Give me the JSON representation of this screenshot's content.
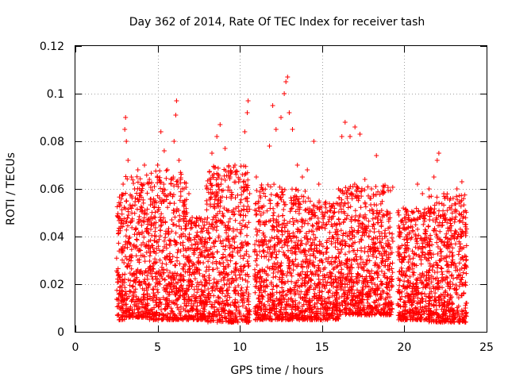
{
  "chart_data": {
    "type": "scatter",
    "title": "Day 362 of 2014, Rate Of TEC Index for receiver tash",
    "xlabel": "GPS time / hours",
    "ylabel": "ROTI / TECUs",
    "xlim": [
      0,
      25
    ],
    "ylim": [
      0,
      0.12
    ],
    "xticks": [
      0,
      5,
      10,
      15,
      20,
      25
    ],
    "xtick_labels": [
      "0",
      "5",
      "10",
      "15",
      "20",
      "25"
    ],
    "yticks": [
      0,
      0.02,
      0.04,
      0.06,
      0.08,
      0.1,
      0.12
    ],
    "ytick_labels": [
      "0",
      "0.02",
      "0.04",
      "0.06",
      "0.08",
      "0.1",
      "0.12"
    ],
    "grid": true,
    "marker": "+",
    "marker_color": "#ff0000",
    "series": [
      {
        "name": "ROTI",
        "points": [
          [
            2.6,
            0.048
          ],
          [
            2.7,
            0.005
          ],
          [
            2.9,
            0.062
          ],
          [
            3.0,
            0.085
          ],
          [
            3.05,
            0.09
          ],
          [
            3.1,
            0.08
          ],
          [
            3.2,
            0.072
          ],
          [
            3.4,
            0.065
          ],
          [
            3.6,
            0.06
          ],
          [
            3.8,
            0.068
          ],
          [
            4.0,
            0.062
          ],
          [
            4.2,
            0.07
          ],
          [
            4.5,
            0.064
          ],
          [
            4.8,
            0.061
          ],
          [
            5.0,
            0.07
          ],
          [
            5.2,
            0.084
          ],
          [
            5.4,
            0.076
          ],
          [
            5.6,
            0.068
          ],
          [
            5.8,
            0.064
          ],
          [
            6.0,
            0.08
          ],
          [
            6.1,
            0.091
          ],
          [
            6.15,
            0.097
          ],
          [
            6.3,
            0.072
          ],
          [
            6.6,
            0.06
          ],
          [
            6.9,
            0.058
          ],
          [
            7.1,
            0.048
          ],
          [
            7.4,
            0.035
          ],
          [
            7.7,
            0.032
          ],
          [
            8.0,
            0.06
          ],
          [
            8.3,
            0.075
          ],
          [
            8.6,
            0.082
          ],
          [
            8.8,
            0.087
          ],
          [
            9.1,
            0.077
          ],
          [
            9.4,
            0.065
          ],
          [
            9.7,
            0.07
          ],
          [
            10.0,
            0.064
          ],
          [
            10.3,
            0.084
          ],
          [
            10.45,
            0.092
          ],
          [
            10.5,
            0.097
          ],
          [
            10.6,
            0.058
          ],
          [
            11.0,
            0.065
          ],
          [
            11.4,
            0.06
          ],
          [
            11.8,
            0.078
          ],
          [
            12.0,
            0.095
          ],
          [
            12.2,
            0.085
          ],
          [
            12.5,
            0.09
          ],
          [
            12.7,
            0.1
          ],
          [
            12.8,
            0.105
          ],
          [
            12.9,
            0.107
          ],
          [
            13.0,
            0.092
          ],
          [
            13.2,
            0.085
          ],
          [
            13.5,
            0.07
          ],
          [
            13.8,
            0.065
          ],
          [
            14.1,
            0.068
          ],
          [
            14.5,
            0.08
          ],
          [
            14.8,
            0.062
          ],
          [
            15.2,
            0.05
          ],
          [
            15.6,
            0.048
          ],
          [
            16.0,
            0.06
          ],
          [
            16.2,
            0.082
          ],
          [
            16.4,
            0.088
          ],
          [
            16.7,
            0.082
          ],
          [
            17.0,
            0.086
          ],
          [
            17.3,
            0.083
          ],
          [
            17.6,
            0.064
          ],
          [
            18.0,
            0.06
          ],
          [
            18.3,
            0.074
          ],
          [
            18.7,
            0.058
          ],
          [
            19.0,
            0.05
          ],
          [
            19.3,
            0.038
          ],
          [
            19.7,
            0.042
          ],
          [
            20.1,
            0.046
          ],
          [
            20.5,
            0.05
          ],
          [
            20.8,
            0.062
          ],
          [
            21.1,
            0.058
          ],
          [
            21.5,
            0.06
          ],
          [
            21.8,
            0.065
          ],
          [
            22.0,
            0.072
          ],
          [
            22.1,
            0.075
          ],
          [
            22.4,
            0.058
          ],
          [
            22.8,
            0.056
          ],
          [
            23.2,
            0.06
          ],
          [
            23.5,
            0.063
          ],
          [
            23.7,
            0.045
          ]
        ],
        "dense_envelope": [
          [
            2.5,
            3.0,
            0.005,
            0.058
          ],
          [
            3.0,
            4.5,
            0.006,
            0.066
          ],
          [
            4.5,
            6.8,
            0.005,
            0.068
          ],
          [
            6.8,
            7.9,
            0.005,
            0.048
          ],
          [
            7.9,
            10.6,
            0.004,
            0.07
          ],
          [
            10.9,
            12.5,
            0.005,
            0.062
          ],
          [
            12.5,
            14.2,
            0.005,
            0.06
          ],
          [
            14.2,
            16.0,
            0.005,
            0.055
          ],
          [
            16.0,
            19.3,
            0.007,
            0.062
          ],
          [
            19.6,
            21.5,
            0.005,
            0.052
          ],
          [
            21.5,
            23.8,
            0.004,
            0.058
          ]
        ]
      }
    ]
  }
}
